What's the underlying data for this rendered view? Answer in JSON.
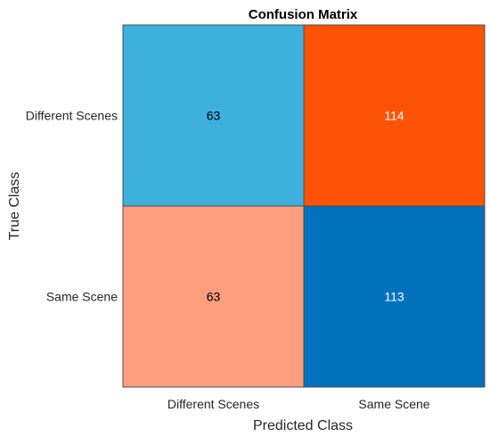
{
  "chart_data": {
    "type": "heatmap",
    "title": "Confusion Matrix",
    "xlabel": "Predicted Class",
    "ylabel": "True Class",
    "row_labels": [
      "Different Scenes",
      "Same Scene"
    ],
    "col_labels": [
      "Different Scenes",
      "Same Scene"
    ],
    "values": [
      [
        63,
        114
      ],
      [
        63,
        113
      ]
    ],
    "cell_colors": [
      [
        "#3EB0DE",
        "#FC5307"
      ],
      [
        "#FE9E7D",
        "#0072BD"
      ]
    ],
    "text_colors": [
      [
        "#000000",
        "#ffffff"
      ],
      [
        "#000000",
        "#ffffff"
      ]
    ],
    "grid_color": "#4d4d4d"
  }
}
